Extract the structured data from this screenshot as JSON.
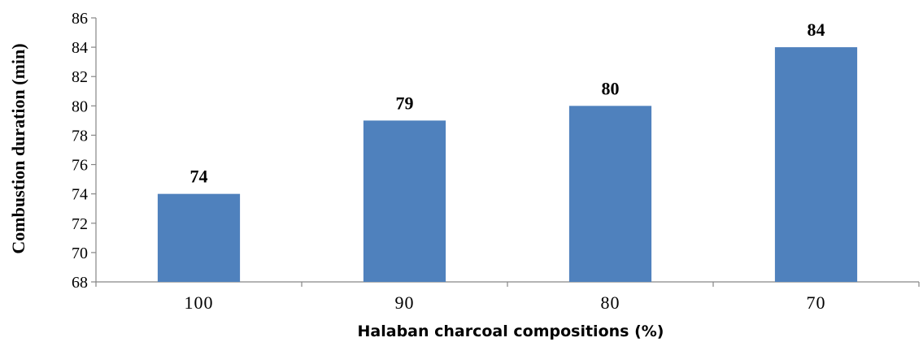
{
  "chart_data": {
    "type": "bar",
    "categories": [
      "100",
      "90",
      "80",
      "70"
    ],
    "values": [
      74,
      79,
      80,
      84
    ],
    "data_labels": [
      "74",
      "79",
      "80",
      "84"
    ],
    "title": "",
    "xlabel": "Halaban charcoal compositions  (%)",
    "ylabel": "Combustion duration (min)",
    "ylim": [
      68,
      86
    ],
    "yticks": [
      68,
      70,
      72,
      74,
      76,
      78,
      80,
      82,
      84,
      86
    ],
    "grid": false,
    "legend": "none",
    "bar_color": "#4f81bd"
  }
}
